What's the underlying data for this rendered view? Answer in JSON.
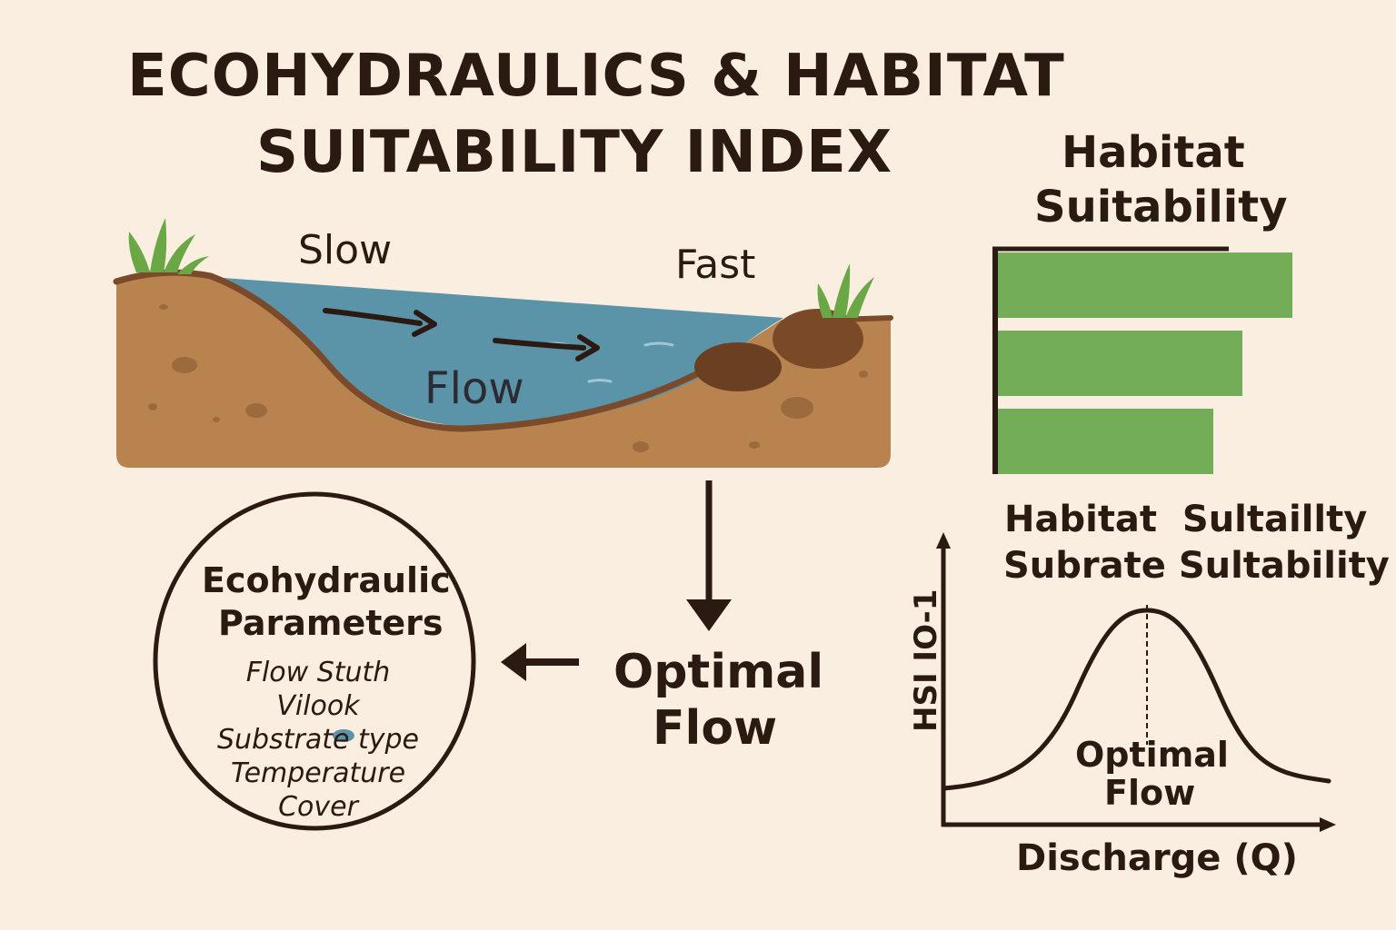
{
  "title": {
    "line1": "ECOHYDRAULICS & HABITAT",
    "line2": "SUITABILITY INDEX"
  },
  "river": {
    "slow_label": "Slow",
    "fast_label": "Fast",
    "flow_label": "Flow"
  },
  "bar_panel": {
    "title_line1": "Habitat",
    "title_line2": "Suitability",
    "bars": [
      {
        "value": 1.0
      },
      {
        "value": 0.83
      },
      {
        "value": 0.73
      }
    ],
    "bar_color": "#74ad57"
  },
  "parameters": {
    "title_line1": "Ecohydraulic",
    "title_line2": "Parameters",
    "items": [
      "Flow Stuth",
      "Vilook",
      "Substrate type",
      "Temperature",
      "Cover"
    ]
  },
  "optimal_flow": {
    "line1": "Optimal",
    "line2": "Flow"
  },
  "curve_panel": {
    "title_line1": "Habitat  Sultaillty",
    "title_line2": "Subrate Sultability",
    "ylabel": "HSI IO-1",
    "xlabel": "Discharge (Q)",
    "peak_label_line1": "Optimal",
    "peak_label_line2": "Flow"
  },
  "colors": {
    "background": "#f9eedf",
    "water": "#5b93a8",
    "soil": "#b9834f",
    "grass": "#6aa845",
    "ink": "#2b1a12"
  }
}
